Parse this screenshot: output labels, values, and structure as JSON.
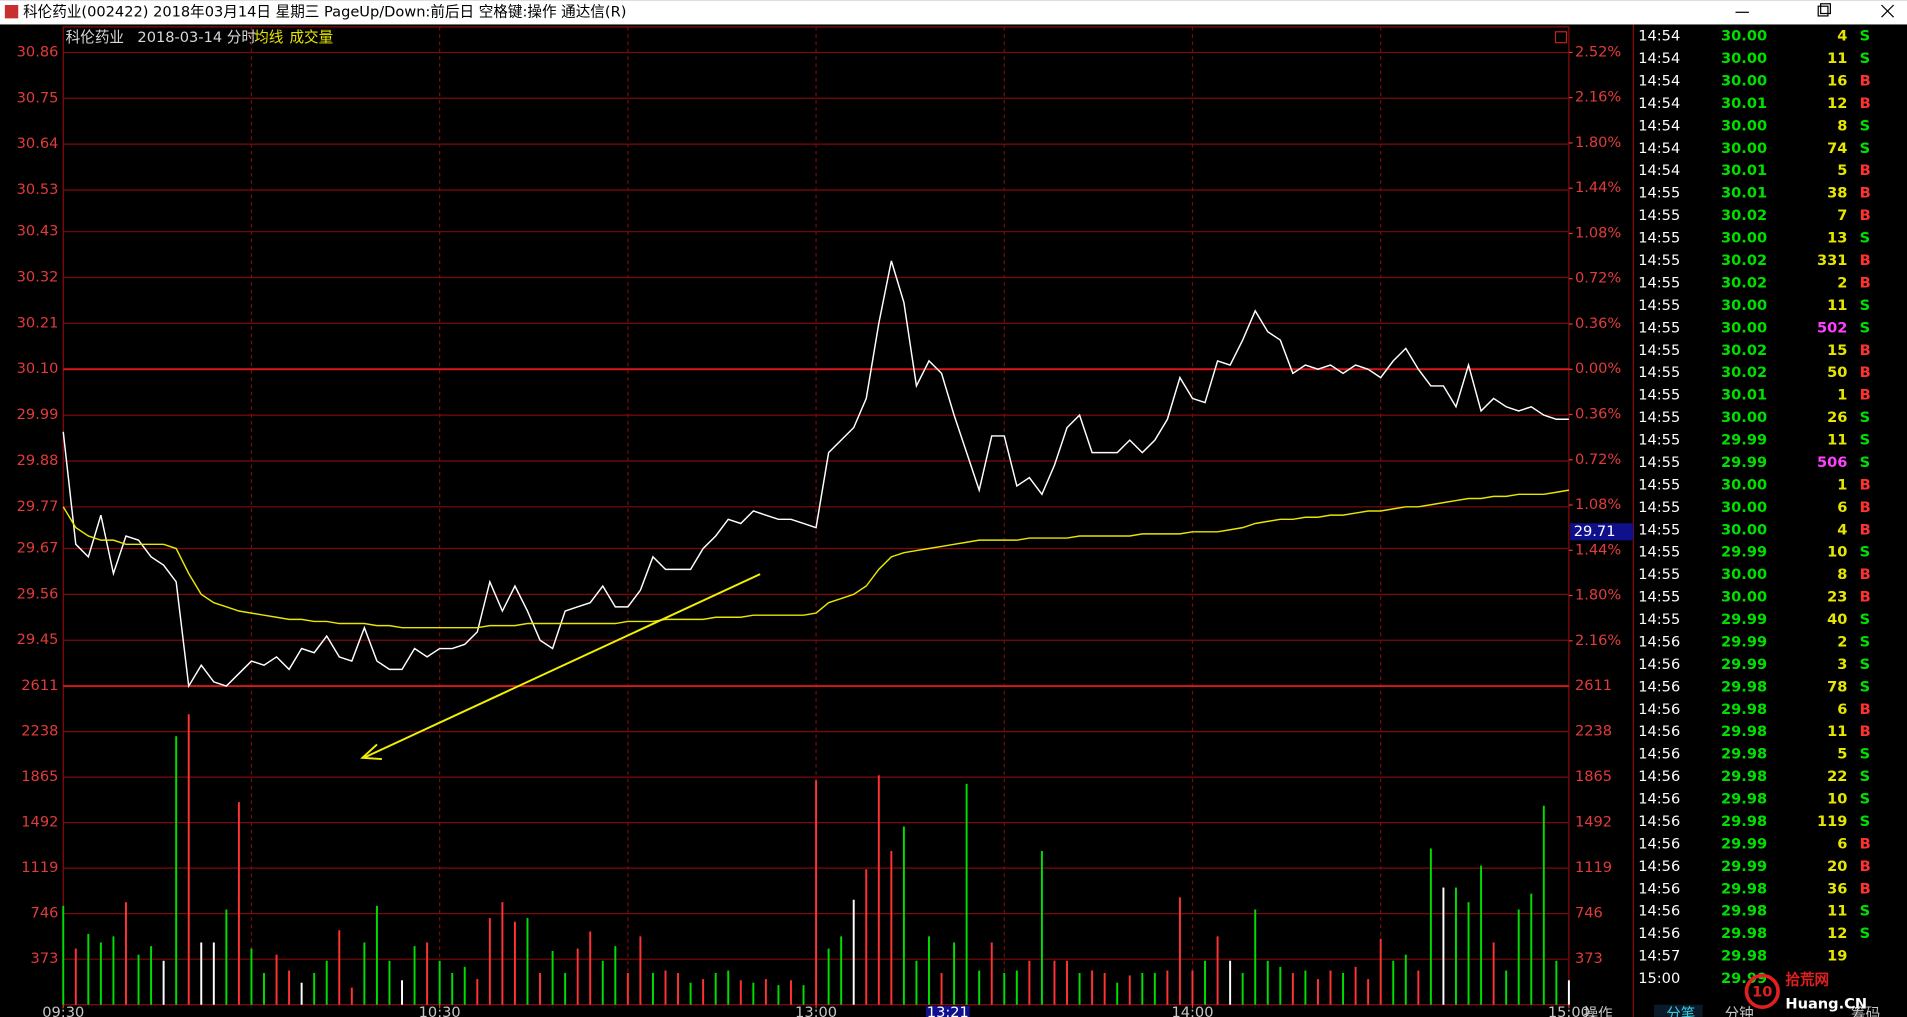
{
  "window": {
    "title": "科伦药业(002422) 2018年03月14日 星期三 PageUp/Down:前后日 空格键:操作 通达信(R)"
  },
  "chart_data": [
    {
      "type": "line",
      "title": "科伦药业",
      "subtitle": "2018-03-14 分时",
      "x": [
        0,
        2,
        4,
        6,
        8,
        10,
        12,
        14,
        16,
        18,
        20,
        22,
        24,
        26,
        28,
        30,
        32,
        34,
        36,
        38,
        40,
        42,
        44,
        46,
        48,
        50,
        52,
        54,
        56,
        58,
        60,
        62,
        64,
        66,
        68,
        70,
        72,
        74,
        76,
        78,
        80,
        82,
        84,
        86,
        88,
        90,
        92,
        94,
        96,
        98,
        100,
        102,
        104,
        106,
        108,
        110,
        112,
        114,
        116,
        118,
        120,
        122,
        124,
        126,
        128,
        130,
        132,
        134,
        136,
        138,
        140,
        142,
        144,
        146,
        148,
        150,
        152,
        154,
        156,
        158,
        160,
        162,
        164,
        166,
        168,
        170,
        172,
        174,
        176,
        178,
        180,
        182,
        184,
        186,
        188,
        190,
        192,
        194,
        196,
        198,
        200,
        202,
        204,
        206,
        208,
        210,
        212,
        214,
        216,
        218,
        220,
        222,
        224,
        226,
        228,
        230,
        232,
        234,
        236,
        238,
        240
      ],
      "series": [
        {
          "color": "#ffffff",
          "values": [
            29.95,
            29.68,
            29.65,
            29.75,
            29.61,
            29.7,
            29.69,
            29.65,
            29.63,
            29.59,
            29.34,
            29.39,
            29.35,
            29.34,
            29.37,
            29.4,
            29.39,
            29.41,
            29.38,
            29.43,
            29.42,
            29.46,
            29.41,
            29.4,
            29.48,
            29.4,
            29.38,
            29.38,
            29.43,
            29.41,
            29.43,
            29.43,
            29.44,
            29.47,
            29.59,
            29.52,
            29.58,
            29.52,
            29.45,
            29.43,
            29.52,
            29.53,
            29.54,
            29.58,
            29.53,
            29.53,
            29.57,
            29.65,
            29.62,
            29.62,
            29.62,
            29.67,
            29.7,
            29.74,
            29.73,
            29.76,
            29.75,
            29.74,
            29.74,
            29.73,
            29.72,
            29.9,
            29.93,
            29.96,
            30.03,
            30.21,
            30.36,
            30.26,
            30.06,
            30.12,
            30.09,
            29.99,
            29.9,
            29.81,
            29.94,
            29.94,
            29.82,
            29.84,
            29.8,
            29.87,
            29.96,
            29.99,
            29.9,
            29.9,
            29.9,
            29.93,
            29.9,
            29.93,
            29.98,
            30.08,
            30.03,
            30.02,
            30.12,
            30.11,
            30.17,
            30.24,
            30.19,
            30.17,
            30.09,
            30.11,
            30.1,
            30.11,
            30.09,
            30.11,
            30.1,
            30.08,
            30.12,
            30.15,
            30.1,
            30.06,
            30.06,
            30.01,
            30.11,
            30.0,
            30.03,
            30.01,
            30.0,
            30.01,
            29.99,
            29.98,
            29.98
          ]
        },
        {
          "name": "均线",
          "color": "#e6e600",
          "values": [
            29.77,
            29.72,
            29.7,
            29.69,
            29.69,
            29.68,
            29.68,
            29.68,
            29.68,
            29.67,
            29.61,
            29.56,
            29.54,
            29.53,
            29.52,
            29.515,
            29.51,
            29.505,
            29.5,
            29.5,
            29.495,
            29.495,
            29.49,
            29.49,
            29.49,
            29.485,
            29.485,
            29.48,
            29.48,
            29.48,
            29.48,
            29.48,
            29.48,
            29.48,
            29.485,
            29.485,
            29.485,
            29.49,
            29.49,
            29.49,
            29.49,
            29.49,
            29.49,
            29.49,
            29.49,
            29.495,
            29.495,
            29.495,
            29.5,
            29.5,
            29.5,
            29.5,
            29.505,
            29.505,
            29.505,
            29.51,
            29.51,
            29.51,
            29.51,
            29.51,
            29.515,
            29.54,
            29.55,
            29.56,
            29.58,
            29.62,
            29.65,
            29.66,
            29.665,
            29.67,
            29.675,
            29.68,
            29.685,
            29.69,
            29.69,
            29.69,
            29.69,
            29.695,
            29.695,
            29.695,
            29.695,
            29.7,
            29.7,
            29.7,
            29.7,
            29.7,
            29.705,
            29.705,
            29.705,
            29.705,
            29.71,
            29.71,
            29.71,
            29.715,
            29.72,
            29.73,
            29.735,
            29.74,
            29.74,
            29.745,
            29.745,
            29.75,
            29.75,
            29.755,
            29.76,
            29.76,
            29.765,
            29.77,
            29.77,
            29.775,
            29.78,
            29.785,
            29.79,
            29.79,
            29.795,
            29.795,
            29.8,
            29.8,
            29.8,
            29.805,
            29.81
          ]
        }
      ],
      "xlim": [
        0,
        240
      ],
      "xticks": [
        {
          "value": 0,
          "label": "09:30"
        },
        {
          "value": 60,
          "label": "10:30"
        },
        {
          "value": 120,
          "label": "13:00"
        },
        {
          "value": 180,
          "label": "14:00"
        },
        {
          "value": 240,
          "label": "15:00"
        }
      ],
      "xgrid": [
        30,
        60,
        90,
        120,
        150,
        180,
        210
      ],
      "ylim": [
        29.34,
        30.86
      ],
      "yticks": [
        30.86,
        30.75,
        30.64,
        30.53,
        30.43,
        30.32,
        30.21,
        {
          "value": 30.1,
          "label": "30.10"
        },
        29.99,
        29.88,
        29.77,
        29.67,
        29.56,
        29.45
      ],
      "y2lim": [
        -2.52,
        2.52
      ],
      "y2ticks": [
        {
          "value": 2.52,
          "label": "2.52%"
        },
        {
          "value": 2.16,
          "label": "2.16%"
        },
        {
          "value": 1.8,
          "label": "1.80%"
        },
        {
          "value": 1.44,
          "label": "1.44%"
        },
        {
          "value": 1.08,
          "label": "1.08%"
        },
        {
          "value": 0.72,
          "label": "0.72%"
        },
        {
          "value": 0.36,
          "label": "0.36%"
        },
        {
          "value": 0,
          "label": "0.00%"
        },
        {
          "value": -0.36,
          "label": "0.36%"
        },
        {
          "value": -0.72,
          "label": "0.72%"
        },
        {
          "value": -1.08,
          "label": "1.08%"
        },
        {
          "value": -1.44,
          "label": "1.44%"
        },
        {
          "value": -1.8,
          "label": "1.80%"
        },
        {
          "value": -2.16,
          "label": "2.16%"
        }
      ],
      "grid": true,
      "grid_color": "#7d0a0a",
      "axis_color": "#e23b3b",
      "cursor": {
        "x": {
          "value": 141,
          "label": "13:21"
        },
        "y": 29.71
      }
    },
    {
      "type": "bar",
      "x": [
        0,
        2,
        4,
        6,
        8,
        10,
        12,
        14,
        16,
        18,
        20,
        22,
        24,
        26,
        28,
        30,
        32,
        34,
        36,
        38,
        40,
        42,
        44,
        46,
        48,
        50,
        52,
        54,
        56,
        58,
        60,
        62,
        64,
        66,
        68,
        70,
        72,
        74,
        76,
        78,
        80,
        82,
        84,
        86,
        88,
        90,
        92,
        94,
        96,
        98,
        100,
        102,
        104,
        106,
        108,
        110,
        112,
        114,
        116,
        118,
        120,
        122,
        124,
        126,
        128,
        130,
        132,
        134,
        136,
        138,
        140,
        142,
        144,
        146,
        148,
        150,
        152,
        154,
        156,
        158,
        160,
        162,
        164,
        166,
        168,
        170,
        172,
        174,
        176,
        178,
        180,
        182,
        184,
        186,
        188,
        190,
        192,
        194,
        196,
        198,
        200,
        202,
        204,
        206,
        208,
        210,
        212,
        214,
        216,
        218,
        220,
        222,
        224,
        226,
        228,
        230,
        232,
        234,
        236,
        238,
        240
      ],
      "series": [
        {
          "name": "成交量",
          "values": [
            810,
            460,
            580,
            510,
            560,
            840,
            410,
            480,
            360,
            2200,
            2380,
            510,
            510,
            780,
            1660,
            460,
            260,
            410,
            280,
            180,
            260,
            360,
            610,
            140,
            510,
            810,
            360,
            200,
            480,
            510,
            360,
            260,
            310,
            210,
            710,
            840,
            680,
            710,
            260,
            440,
            260,
            460,
            600,
            360,
            480,
            260,
            560,
            260,
            280,
            260,
            180,
            210,
            260,
            280,
            200,
            180,
            210,
            160,
            200,
            160,
            1840,
            460,
            560,
            860,
            1110,
            1880,
            1260,
            1460,
            360,
            560,
            260,
            510,
            1810,
            280,
            510,
            260,
            280,
            360,
            1260,
            360,
            360,
            260,
            280,
            260,
            180,
            240,
            260,
            260,
            280,
            880,
            280,
            360,
            560,
            360,
            260,
            780,
            360,
            310,
            260,
            280,
            210,
            280,
            260,
            310,
            210,
            540,
            360,
            410,
            280,
            1280,
            960,
            960,
            840,
            1140,
            510,
            280,
            780,
            910,
            1630,
            360,
            200
          ],
          "colors": [
            "#0d0",
            "#f33",
            "#0d0",
            "#0d0",
            "#0d0",
            "#f33",
            "#0d0",
            "#0d0",
            "#fff",
            "#0d0",
            "#f33",
            "#fff",
            "#fff",
            "#0d0",
            "#f33",
            "#0d0",
            "#0d0",
            "#f33",
            "#f33",
            "#fff",
            "#0d0",
            "#0d0",
            "#f33",
            "#f33",
            "#0d0",
            "#0d0",
            "#0d0",
            "#fff",
            "#0d0",
            "#f33",
            "#0d0",
            "#0d0",
            "#0d0",
            "#f33",
            "#f33",
            "#f33",
            "#f33",
            "#0d0",
            "#f33",
            "#0d0",
            "#0d0",
            "#f33",
            "#f33",
            "#0d0",
            "#0d0",
            "#f33",
            "#f33",
            "#0d0",
            "#f33",
            "#f33",
            "#0d0",
            "#f33",
            "#0d0",
            "#0d0",
            "#f33",
            "#0d0",
            "#f33",
            "#0d0",
            "#f33",
            "#0d0",
            "#f33",
            "#0d0",
            "#0d0",
            "#fff",
            "#f33",
            "#f33",
            "#f33",
            "#0d0",
            "#0d0",
            "#0d0",
            "#f33",
            "#0d0",
            "#0d0",
            "#0d0",
            "#f33",
            "#0d0",
            "#0d0",
            "#f33",
            "#0d0",
            "#f33",
            "#f33",
            "#0d0",
            "#f33",
            "#f33",
            "#0d0",
            "#f33",
            "#0d0",
            "#0d0",
            "#f33",
            "#f33",
            "#f33",
            "#0d0",
            "#f33",
            "#fff",
            "#0d0",
            "#0d0",
            "#0d0",
            "#0d0",
            "#f33",
            "#0d0",
            "#f33",
            "#f33",
            "#0d0",
            "#f33",
            "#f33",
            "#f33",
            "#0d0",
            "#0d0",
            "#f33",
            "#0d0",
            "#fff",
            "#0d0",
            "#0d0",
            "#0d0",
            "#f33",
            "#0d0",
            "#0d0",
            "#0d0",
            "#0d0",
            "#0d0",
            "#fff"
          ]
        }
      ],
      "xlim": [
        0,
        240
      ],
      "ylim": [
        0,
        2611
      ],
      "yticks": [
        2611,
        2238,
        1865,
        1492,
        1119,
        746,
        373
      ],
      "grid": true,
      "grid_color": "#7d0a0a",
      "axis_color": "#e23b3b"
    }
  ],
  "trades": {
    "rows": [
      [
        "14:54",
        "30.00",
        4,
        "S"
      ],
      [
        "14:54",
        "30.00",
        11,
        "S"
      ],
      [
        "14:54",
        "30.00",
        16,
        "B"
      ],
      [
        "14:54",
        "30.01",
        12,
        "B"
      ],
      [
        "14:54",
        "30.00",
        8,
        "S"
      ],
      [
        "14:54",
        "30.00",
        74,
        "S"
      ],
      [
        "14:54",
        "30.01",
        5,
        "B"
      ],
      [
        "14:55",
        "30.01",
        38,
        "B"
      ],
      [
        "14:55",
        "30.02",
        7,
        "B"
      ],
      [
        "14:55",
        "30.00",
        13,
        "S"
      ],
      [
        "14:55",
        "30.02",
        331,
        "B"
      ],
      [
        "14:55",
        "30.02",
        2,
        "B"
      ],
      [
        "14:55",
        "30.00",
        11,
        "S"
      ],
      [
        "14:55",
        "30.00",
        502,
        "S"
      ],
      [
        "14:55",
        "30.02",
        15,
        "B"
      ],
      [
        "14:55",
        "30.02",
        50,
        "B"
      ],
      [
        "14:55",
        "30.01",
        1,
        "B"
      ],
      [
        "14:55",
        "30.00",
        26,
        "S"
      ],
      [
        "14:55",
        "29.99",
        11,
        "S"
      ],
      [
        "14:55",
        "29.99",
        506,
        "S"
      ],
      [
        "14:55",
        "30.00",
        1,
        "B"
      ],
      [
        "14:55",
        "30.00",
        6,
        "B"
      ],
      [
        "14:55",
        "30.00",
        4,
        "B"
      ],
      [
        "14:55",
        "29.99",
        10,
        "S"
      ],
      [
        "14:55",
        "30.00",
        8,
        "B"
      ],
      [
        "14:55",
        "30.00",
        23,
        "B"
      ],
      [
        "14:55",
        "29.99",
        40,
        "S"
      ],
      [
        "14:56",
        "29.99",
        2,
        "S"
      ],
      [
        "14:56",
        "29.99",
        3,
        "S"
      ],
      [
        "14:56",
        "29.98",
        78,
        "S"
      ],
      [
        "14:56",
        "29.98",
        6,
        "B"
      ],
      [
        "14:56",
        "29.98",
        11,
        "B"
      ],
      [
        "14:56",
        "29.98",
        5,
        "S"
      ],
      [
        "14:56",
        "29.98",
        22,
        "S"
      ],
      [
        "14:56",
        "29.98",
        10,
        "S"
      ],
      [
        "14:56",
        "29.98",
        119,
        "S"
      ],
      [
        "14:56",
        "29.99",
        6,
        "B"
      ],
      [
        "14:56",
        "29.99",
        20,
        "B"
      ],
      [
        "14:56",
        "29.98",
        36,
        "B"
      ],
      [
        "14:56",
        "29.98",
        11,
        "S"
      ],
      [
        "14:56",
        "29.98",
        12,
        "S"
      ],
      [
        "14:57",
        "29.98",
        19
      ],
      [
        "15:00",
        "29.99"
      ]
    ],
    "time_color": "#ffffff",
    "price_color": "#00e000",
    "volume_color": "#e6e600",
    "side_colors": {
      "B": "#ff3232",
      "S": "#00e000"
    },
    "highlight": {
      "rows": [
        13,
        19
      ],
      "color": "#ff40ff"
    }
  },
  "footer": {
    "action": "操作",
    "tabs": [
      "分笔",
      "分钟",
      "筹码"
    ]
  },
  "watermark": {
    "logo": "10",
    "name": "拾荒网",
    "site": "Huang.CN"
  }
}
